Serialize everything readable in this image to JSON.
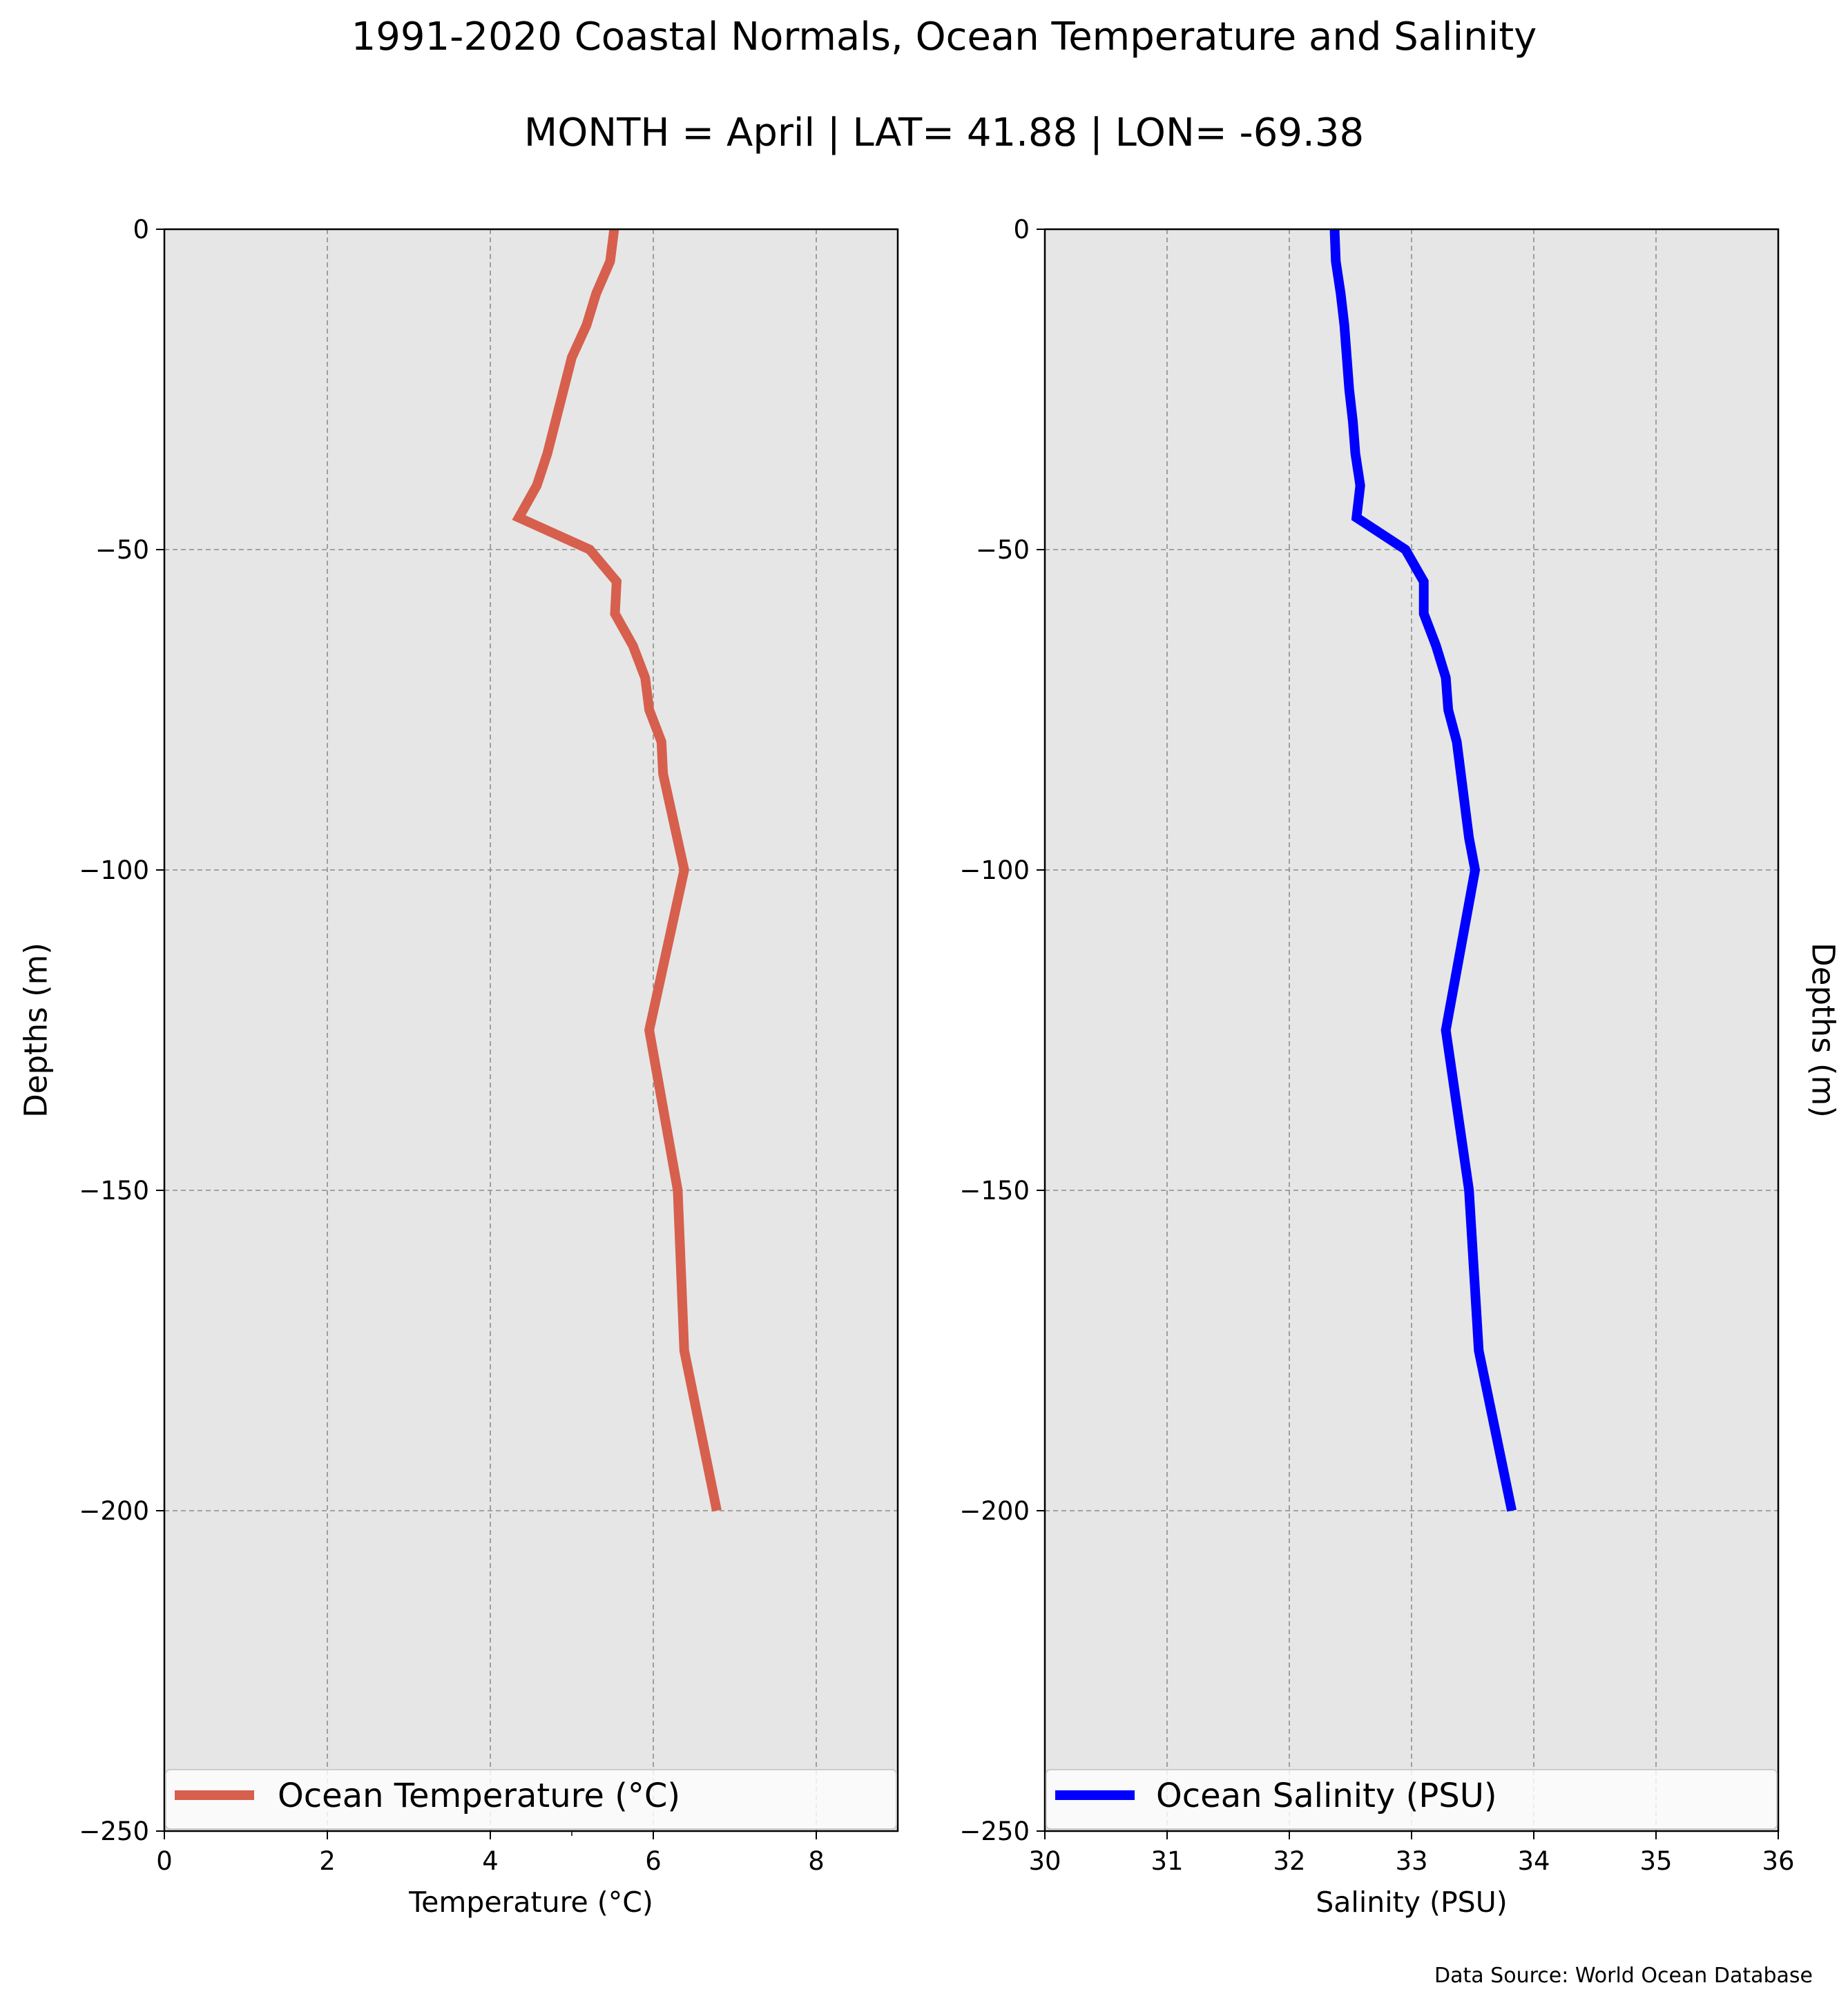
{
  "figure": {
    "title": "1991-2020 Coastal Normals, Ocean Temperature and Salinity",
    "subtitle": "MONTH = April | LAT= 41.88 | LON= -69.38",
    "source": "Data Source: World Ocean Database",
    "plot_background": "#e6e6e6",
    "grid": true
  },
  "chart_data": [
    {
      "type": "line",
      "xlabel": "Temperature ($^\\circ$C)",
      "xlabel_display": "Temperature (°C)",
      "ylabel": "Depths (m)",
      "xlim": [
        0,
        9
      ],
      "ylim": [
        -250,
        0
      ],
      "xticks": [
        0,
        2,
        4,
        6,
        8
      ],
      "xtick_labels": [
        "0",
        "2",
        "4",
        "6",
        "8"
      ],
      "yticks": [
        0,
        -50,
        -100,
        -150,
        -200,
        -250
      ],
      "ytick_labels": [
        "0",
        "−50",
        "−100",
        "−150",
        "−200",
        "−250"
      ],
      "legend_position": "lower center",
      "series": [
        {
          "name": "Ocean Temperature (°C)",
          "color": "#d6604d",
          "points": [
            {
              "x": 5.52,
              "y": 0
            },
            {
              "x": 5.47,
              "y": -5
            },
            {
              "x": 5.3,
              "y": -10
            },
            {
              "x": 5.18,
              "y": -15
            },
            {
              "x": 5.0,
              "y": -20
            },
            {
              "x": 4.9,
              "y": -25
            },
            {
              "x": 4.8,
              "y": -30
            },
            {
              "x": 4.7,
              "y": -35
            },
            {
              "x": 4.57,
              "y": -40
            },
            {
              "x": 4.35,
              "y": -45
            },
            {
              "x": 5.22,
              "y": -50
            },
            {
              "x": 5.55,
              "y": -55
            },
            {
              "x": 5.53,
              "y": -60
            },
            {
              "x": 5.75,
              "y": -65
            },
            {
              "x": 5.9,
              "y": -70
            },
            {
              "x": 5.95,
              "y": -75
            },
            {
              "x": 6.1,
              "y": -80
            },
            {
              "x": 6.12,
              "y": -85
            },
            {
              "x": 6.38,
              "y": -100
            },
            {
              "x": 5.95,
              "y": -125
            },
            {
              "x": 6.3,
              "y": -150
            },
            {
              "x": 6.38,
              "y": -175
            },
            {
              "x": 6.78,
              "y": -200
            }
          ]
        }
      ]
    },
    {
      "type": "line",
      "xlabel": "Salinity (PSU)",
      "ylabel": "Depths (m)",
      "xlim": [
        30,
        36
      ],
      "ylim": [
        -250,
        0
      ],
      "xticks": [
        30,
        31,
        32,
        33,
        34,
        35,
        36
      ],
      "xtick_labels": [
        "30",
        "31",
        "32",
        "33",
        "34",
        "35",
        "36"
      ],
      "yticks": [
        0,
        -50,
        -100,
        -150,
        -200,
        -250
      ],
      "ytick_labels": [
        "0",
        "−50",
        "−100",
        "−150",
        "−200",
        "−250"
      ],
      "legend_position": "lower center",
      "series": [
        {
          "name": "Ocean Salinity (PSU)",
          "color": "#0000ff",
          "points": [
            {
              "x": 32.37,
              "y": 0
            },
            {
              "x": 32.38,
              "y": -5
            },
            {
              "x": 32.42,
              "y": -10
            },
            {
              "x": 32.45,
              "y": -15
            },
            {
              "x": 32.47,
              "y": -20
            },
            {
              "x": 32.49,
              "y": -25
            },
            {
              "x": 32.52,
              "y": -30
            },
            {
              "x": 32.54,
              "y": -35
            },
            {
              "x": 32.58,
              "y": -40
            },
            {
              "x": 32.55,
              "y": -45
            },
            {
              "x": 32.95,
              "y": -50
            },
            {
              "x": 33.1,
              "y": -55
            },
            {
              "x": 33.1,
              "y": -60
            },
            {
              "x": 33.2,
              "y": -65
            },
            {
              "x": 33.28,
              "y": -70
            },
            {
              "x": 33.3,
              "y": -75
            },
            {
              "x": 33.37,
              "y": -80
            },
            {
              "x": 33.47,
              "y": -95
            },
            {
              "x": 33.52,
              "y": -100
            },
            {
              "x": 33.28,
              "y": -125
            },
            {
              "x": 33.47,
              "y": -150
            },
            {
              "x": 33.55,
              "y": -175
            },
            {
              "x": 33.82,
              "y": -200
            }
          ]
        }
      ]
    }
  ]
}
